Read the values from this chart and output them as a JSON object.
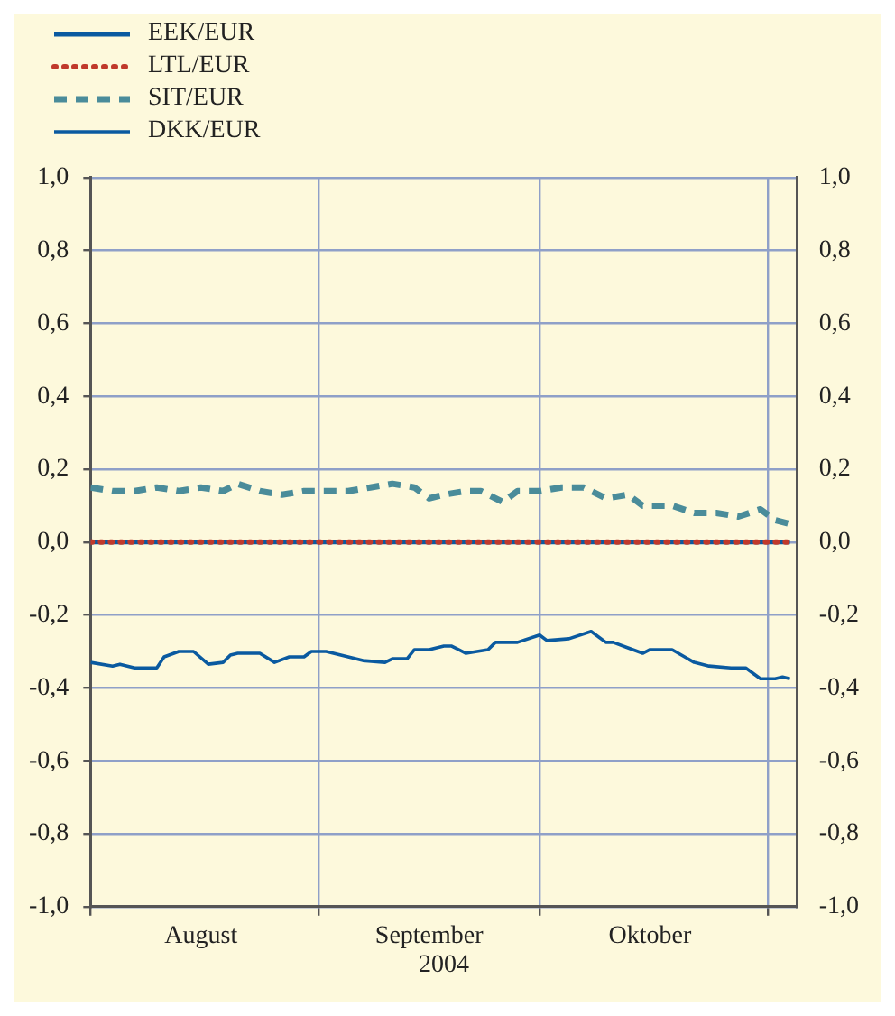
{
  "chart_data": {
    "type": "line",
    "xlabel": "2004",
    "legend": "top left",
    "grid": true,
    "marker": "none",
    "x": [
      "2004-08-01",
      "2004-08-04",
      "2004-08-05",
      "2004-08-07",
      "2004-08-10",
      "2004-08-11",
      "2004-08-13",
      "2004-08-15",
      "2004-08-17",
      "2004-08-19",
      "2004-08-20",
      "2004-08-21",
      "2004-08-24",
      "2004-08-26",
      "2004-08-28",
      "2004-08-30",
      "2004-08-31",
      "2004-09-02",
      "2004-09-05",
      "2004-09-07",
      "2004-09-10",
      "2004-09-11",
      "2004-09-13",
      "2004-09-14",
      "2004-09-16",
      "2004-09-18",
      "2004-09-19",
      "2004-09-21",
      "2004-09-24",
      "2004-09-25",
      "2004-09-28",
      "2004-10-01",
      "2004-10-02",
      "2004-10-05",
      "2004-10-08",
      "2004-10-10",
      "2004-10-11",
      "2004-10-13",
      "2004-10-15",
      "2004-10-16",
      "2004-10-19",
      "2004-10-22",
      "2004-10-24",
      "2004-10-27",
      "2004-10-29",
      "2004-10-31",
      "2004-11-02",
      "2004-11-03",
      "2004-11-04"
    ],
    "series": [
      {
        "name": "EEK/EUR",
        "color": "#0a5aa0",
        "line_style": "solid",
        "x": [
          "2004-08-01",
          "2004-11-04"
        ],
        "values": [
          0,
          0
        ]
      },
      {
        "name": "LTL/EUR",
        "color": "#c0392b",
        "line_style": "dotted",
        "x": [
          "2004-08-01",
          "2004-11-04"
        ],
        "values": [
          0,
          0
        ]
      },
      {
        "name": "SIT/EUR",
        "color": "#4a8c9a",
        "line_style": "dashed",
        "x": [
          "2004-08-01",
          "2004-08-04",
          "2004-08-07",
          "2004-08-10",
          "2004-08-13",
          "2004-08-16",
          "2004-08-19",
          "2004-08-21",
          "2004-08-24",
          "2004-08-27",
          "2004-08-30",
          "2004-09-02",
          "2004-09-05",
          "2004-09-08",
          "2004-09-11",
          "2004-09-14",
          "2004-09-16",
          "2004-09-18",
          "2004-09-21",
          "2004-09-23",
          "2004-09-26",
          "2004-09-28",
          "2004-10-01",
          "2004-10-04",
          "2004-10-07",
          "2004-10-10",
          "2004-10-13",
          "2004-10-15",
          "2004-10-19",
          "2004-10-22",
          "2004-10-25",
          "2004-10-28",
          "2004-10-31",
          "2004-11-02",
          "2004-11-04"
        ],
        "values": [
          0.15,
          0.14,
          0.14,
          0.15,
          0.14,
          0.15,
          0.14,
          0.16,
          0.14,
          0.13,
          0.14,
          0.14,
          0.14,
          0.15,
          0.16,
          0.15,
          0.12,
          0.13,
          0.14,
          0.14,
          0.11,
          0.14,
          0.14,
          0.15,
          0.15,
          0.12,
          0.13,
          0.1,
          0.1,
          0.08,
          0.08,
          0.07,
          0.09,
          0.06,
          0.05
        ]
      },
      {
        "name": "DKK/EUR",
        "color": "#0a5aa0",
        "line_style": "solid",
        "values": [
          -0.33,
          -0.34,
          -0.335,
          -0.345,
          -0.345,
          -0.315,
          -0.3,
          -0.3,
          -0.335,
          -0.33,
          -0.31,
          -0.305,
          -0.305,
          -0.33,
          -0.315,
          -0.315,
          -0.3,
          -0.3,
          -0.315,
          -0.325,
          -0.33,
          -0.32,
          -0.32,
          -0.295,
          -0.295,
          -0.285,
          -0.285,
          -0.305,
          -0.295,
          -0.275,
          -0.275,
          -0.255,
          -0.27,
          -0.265,
          -0.245,
          -0.275,
          -0.275,
          -0.29,
          -0.305,
          -0.295,
          -0.295,
          -0.33,
          -0.34,
          -0.345,
          -0.345,
          -0.375,
          -0.375,
          -0.37,
          -0.375
        ]
      }
    ],
    "xlim": [
      "2004-08-01",
      "2004-11-05"
    ],
    "xticks": [
      {
        "value": "2004-08-01",
        "label": null
      },
      {
        "value": "2004-08-16",
        "label": "August"
      },
      {
        "value": "2004-09-01",
        "label": null
      },
      {
        "value": "2004-09-16",
        "label": "September"
      },
      {
        "value": "2004-10-01",
        "label": null
      },
      {
        "value": "2004-10-16",
        "label": "Oktober"
      },
      {
        "value": "2004-11-01",
        "label": null
      }
    ],
    "ylim": [
      -1,
      1
    ],
    "yticks": [
      {
        "value": -1,
        "label": "-1,0"
      },
      {
        "value": -0.8,
        "label": "-0,8"
      },
      {
        "value": -0.6,
        "label": "-0,6"
      },
      {
        "value": -0.4,
        "label": "-0,4"
      },
      {
        "value": -0.2,
        "label": "-0,2"
      },
      {
        "value": 0,
        "label": "0,0"
      },
      {
        "value": 0.2,
        "label": "0,2"
      },
      {
        "value": 0.4,
        "label": "0,4"
      },
      {
        "value": 0.6,
        "label": "0,6"
      },
      {
        "value": 0.8,
        "label": "0,8"
      },
      {
        "value": 1,
        "label": "1,0"
      }
    ],
    "y2lim": [
      -1,
      1
    ],
    "y2ticks": [
      {
        "value": -1,
        "label": "-1,0"
      },
      {
        "value": -0.8,
        "label": "-0,8"
      },
      {
        "value": -0.6,
        "label": "-0,6"
      },
      {
        "value": -0.4,
        "label": "-0,4"
      },
      {
        "value": -0.2,
        "label": "-0,2"
      },
      {
        "value": 0,
        "label": "0,0"
      },
      {
        "value": 0.2,
        "label": "0,2"
      },
      {
        "value": 0.4,
        "label": "0,4"
      },
      {
        "value": 0.6,
        "label": "0,6"
      },
      {
        "value": 0.8,
        "label": "0,8"
      },
      {
        "value": 1,
        "label": "1,0"
      }
    ]
  }
}
